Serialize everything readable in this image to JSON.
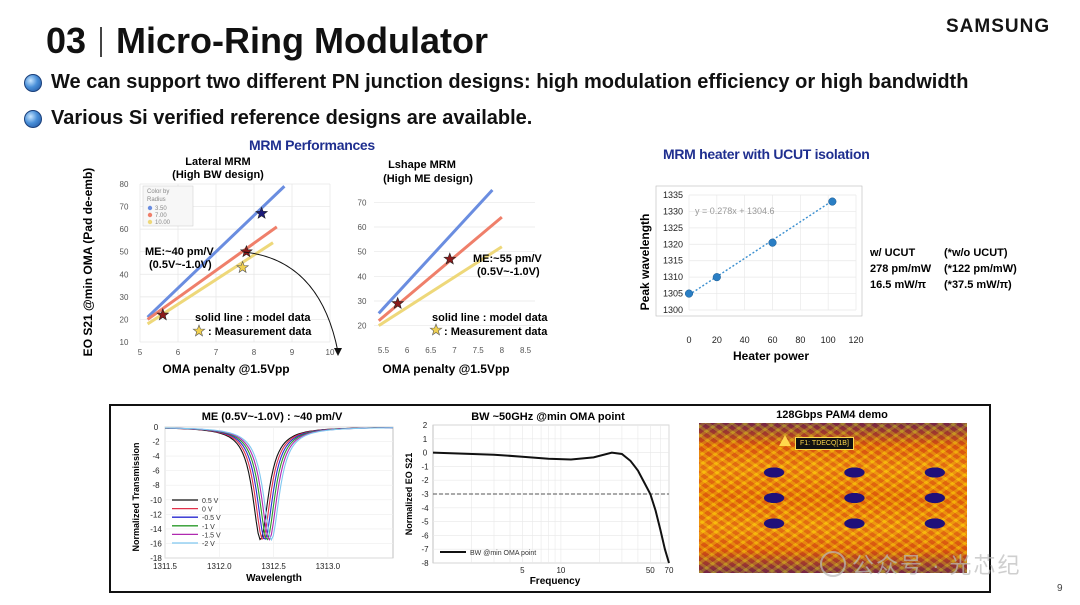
{
  "header": {
    "number": "03",
    "title": "Micro-Ring Modulator",
    "brand": "SAMSUNG"
  },
  "bullets": [
    "We can support two different PN junction designs: high modulation efficiency or high bandwidth",
    "Various Si verified reference designs are available."
  ],
  "sections": {
    "performance_title": "MRM Performances",
    "heater_title": "MRM heater with UCUT isolation"
  },
  "ucut_table": {
    "row1": [
      "w/ UCUT",
      "(*w/o UCUT)"
    ],
    "row2": [
      "278 pm/mW",
      "(*122 pm/mW)"
    ],
    "row3": [
      "16.5 mW/π",
      "(*37.5 mW/π)"
    ]
  },
  "page_number": "9",
  "watermark": "公众号 · 光芯纪",
  "chart_data": [
    {
      "id": "lateral",
      "type": "line",
      "title": "Lateral MRM",
      "subtitle": "(High BW design)",
      "xlabel": "OMA penalty @1.5Vpp",
      "ylabel": "EO S21 @min OMA (Pad de-emb)",
      "xlim": [
        5,
        10
      ],
      "ylim": [
        10,
        80
      ],
      "xticks": [
        5,
        6,
        7,
        8,
        9,
        10
      ],
      "yticks": [
        10,
        20,
        30,
        40,
        50,
        60,
        70,
        80
      ],
      "legend": {
        "title": [
          "Color by",
          "Radius"
        ],
        "items": [
          "3.50",
          "7.00",
          "10.00"
        ]
      },
      "series": [
        {
          "name": "3.50",
          "color": "#6a8de0",
          "x": [
            5.2,
            8.8
          ],
          "y": [
            21,
            79
          ]
        },
        {
          "name": "7.00",
          "color": "#ef7f6a",
          "x": [
            5.2,
            8.6
          ],
          "y": [
            20,
            61
          ]
        },
        {
          "name": "10.00",
          "color": "#eed87a",
          "x": [
            5.2,
            8.5
          ],
          "y": [
            18,
            54
          ]
        }
      ],
      "markers": [
        {
          "x": 8.2,
          "y": 67,
          "color": "#1a1a7a",
          "shape": "star"
        },
        {
          "x": 7.8,
          "y": 50,
          "color": "#8b1a1a",
          "shape": "star"
        },
        {
          "x": 5.6,
          "y": 22,
          "color": "#8b1a1a",
          "shape": "star"
        },
        {
          "x": 7.7,
          "y": 43,
          "color": "#f0d050",
          "shape": "star-outline"
        }
      ],
      "annotations": [
        "ME:~40 pm/V",
        "(0.5V~-1.0V)",
        "solid line : model data",
        ": Measurement data"
      ]
    },
    {
      "id": "lshape",
      "type": "line",
      "title": "Lshape MRM",
      "subtitle": "(High ME design)",
      "xlabel": "OMA penalty @1.5Vpp",
      "ylabel": "",
      "xlim": [
        5.3,
        8.7
      ],
      "ylim": [
        15,
        75
      ],
      "xticks": [
        5.5,
        6,
        6.5,
        7,
        7.5,
        8,
        8.5
      ],
      "yticks": [
        20,
        30,
        40,
        50,
        60,
        70
      ],
      "series": [
        {
          "name": "blue",
          "color": "#6a8de0",
          "x": [
            5.4,
            7.8
          ],
          "y": [
            25,
            75
          ]
        },
        {
          "name": "red",
          "color": "#ef7f6a",
          "x": [
            5.4,
            8.0
          ],
          "y": [
            22,
            64
          ]
        },
        {
          "name": "yellow",
          "color": "#eed87a",
          "x": [
            5.4,
            8.0
          ],
          "y": [
            20,
            52
          ]
        }
      ],
      "markers": [
        {
          "x": 5.8,
          "y": 29,
          "color": "#8b1a1a",
          "shape": "star"
        },
        {
          "x": 6.9,
          "y": 47,
          "color": "#8b1a1a",
          "shape": "star"
        },
        {
          "x": 6.5,
          "y": 20,
          "color": "#f0d050",
          "shape": "star-outline"
        }
      ],
      "annotations": [
        "ME:~55 pm/V",
        "(0.5V~-1.0V)",
        "solid line : model data",
        ": Measurement data"
      ]
    },
    {
      "id": "heater",
      "type": "scatter",
      "xlabel": "Heater power",
      "ylabel": "Peak wavelength",
      "xlim": [
        0,
        120
      ],
      "ylim": [
        1300,
        1335
      ],
      "xticks": [
        0,
        20,
        40,
        60,
        80,
        100,
        120
      ],
      "yticks": [
        1300,
        1305,
        1310,
        1315,
        1320,
        1325,
        1330,
        1335
      ],
      "points": {
        "x": [
          0,
          20,
          60,
          103
        ],
        "y": [
          1305,
          1310,
          1320.5,
          1333
        ]
      },
      "trendline": {
        "equation": "y = 0.278x + 1304.6",
        "slope": 0.278,
        "intercept": 1304.6
      }
    },
    {
      "id": "transmission",
      "type": "line",
      "title": "ME (0.5V~-1.0V) : ~40 pm/V",
      "xlabel": "Wavelength",
      "ylabel": "Normalized Transmission",
      "xlim": [
        1311.5,
        1313.6
      ],
      "ylim": [
        -18,
        0
      ],
      "xticks": [
        1311.5,
        1312.0,
        1312.5,
        1313.0
      ],
      "yticks": [
        0,
        -2,
        -4,
        -6,
        -8,
        -10,
        -12,
        -14,
        -16,
        -18
      ],
      "series": [
        {
          "name": "0.5 V",
          "color": "#111111",
          "center": 1312.38
        },
        {
          "name": "0 V",
          "color": "#e0304a",
          "center": 1312.4
        },
        {
          "name": "-0.5 V",
          "color": "#2a2ad0",
          "center": 1312.42
        },
        {
          "name": "-1 V",
          "color": "#2a9a2a",
          "center": 1312.44
        },
        {
          "name": "-1.5 V",
          "color": "#b02ab0",
          "center": 1312.46
        },
        {
          "name": "-2 V",
          "color": "#7fc8f0",
          "center": 1312.48
        }
      ],
      "dip_depth": -15.5
    },
    {
      "id": "bandwidth",
      "type": "line",
      "title": "BW ~50GHz @min OMA point",
      "xlabel": "Frequency",
      "ylabel": "Normalized EO S21",
      "xscale": "log",
      "xlim": [
        1,
        70
      ],
      "ylim": [
        -8,
        2
      ],
      "xticks": [
        5,
        10,
        50,
        70
      ],
      "yticks": [
        2,
        1,
        0,
        -1,
        -2,
        -3,
        -4,
        -5,
        -6,
        -7,
        -8
      ],
      "reference_line": -3,
      "series": [
        {
          "name": "BW @min OMA point",
          "color": "#111111",
          "x": [
            1,
            3,
            5,
            8,
            12,
            18,
            25,
            30,
            35,
            40,
            45,
            50,
            55,
            60,
            65,
            70
          ],
          "y": [
            0,
            -0.15,
            -0.3,
            -0.45,
            -0.5,
            -0.35,
            0,
            -0.1,
            -0.6,
            -1.3,
            -2.2,
            -3,
            -4.2,
            -5.6,
            -7,
            -8
          ]
        }
      ]
    },
    {
      "id": "eye",
      "type": "heatmap",
      "title": "128Gbps PAM4 demo",
      "label": "F1: TDECQ[1B]"
    }
  ]
}
